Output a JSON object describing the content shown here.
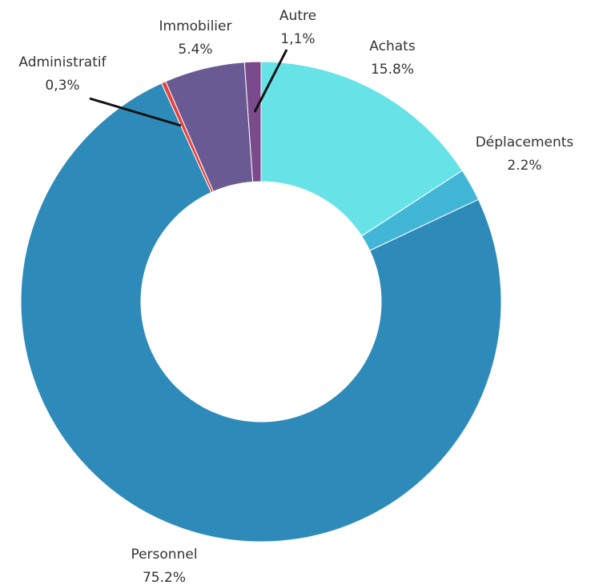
{
  "chart_data": {
    "type": "donut",
    "categories": [
      "Achats",
      "Déplacements",
      "Personnel",
      "Administratif",
      "Immobilier",
      "Autre"
    ],
    "values": [
      15.8,
      2.2,
      75.2,
      0.3,
      5.4,
      1.1
    ],
    "value_labels": [
      "15.8%",
      "2.2%",
      "75.2%",
      "0,3%",
      "5.4%",
      "1,1%"
    ],
    "colors": [
      "#67e3e8",
      "#41b6d6",
      "#2e8bb9",
      "#e8413c",
      "#6a5a94",
      "#7b4a8c"
    ]
  }
}
